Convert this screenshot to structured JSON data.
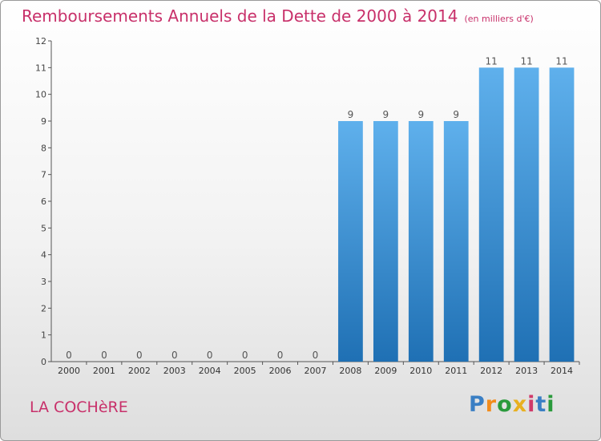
{
  "header": {
    "title": "Remboursements Annuels de la Dette de 2000 à 2014",
    "unit": "(en milliers d'€)"
  },
  "footer": {
    "commune": "LA COCHèRE",
    "logo": "Proxiti"
  },
  "colors": {
    "title": "#c8306a",
    "bar_top": "#5fb0ec",
    "bar_bottom": "#1f70b4",
    "logo": [
      "#3a7fc4",
      "#f28c1c",
      "#2a9a3c",
      "#e8b020",
      "#d03a6a",
      "#3a7fc4",
      "#2a9a3c"
    ]
  },
  "chart_data": {
    "type": "bar",
    "categories": [
      "2000",
      "2001",
      "2002",
      "2003",
      "2004",
      "2005",
      "2006",
      "2007",
      "2008",
      "2009",
      "2010",
      "2011",
      "2012",
      "2013",
      "2014"
    ],
    "values": [
      0,
      0,
      0,
      0,
      0,
      0,
      0,
      0,
      9,
      9,
      9,
      9,
      11,
      11,
      11
    ],
    "title": "Remboursements Annuels de la Dette de 2000 à 2014",
    "ylim": [
      0,
      12
    ],
    "yticks": [
      0,
      1,
      2,
      3,
      4,
      5,
      6,
      7,
      8,
      9,
      10,
      11,
      12
    ],
    "grid": false,
    "data_labels": true
  }
}
